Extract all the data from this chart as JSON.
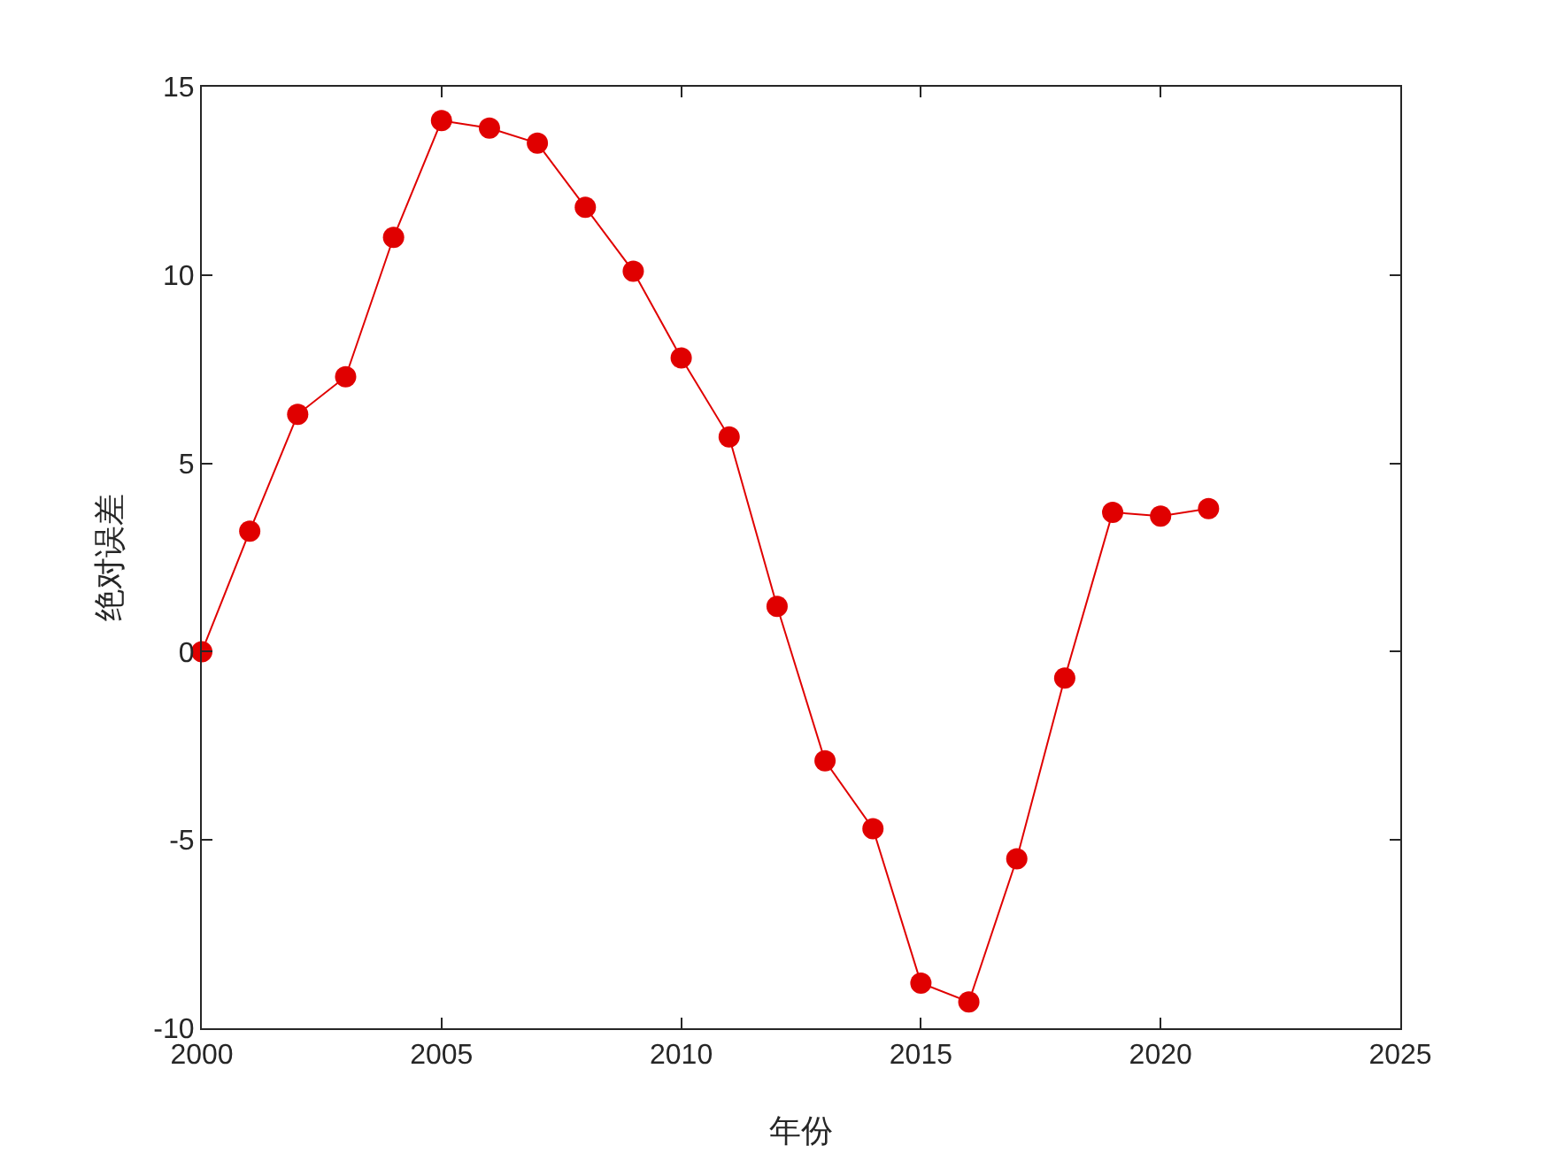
{
  "chart_data": {
    "type": "line",
    "xlabel": "年份",
    "ylabel": "绝对误差",
    "x": [
      2000,
      2001,
      2002,
      2003,
      2004,
      2005,
      2006,
      2007,
      2008,
      2009,
      2010,
      2011,
      2012,
      2013,
      2014,
      2015,
      2016,
      2017,
      2018,
      2019,
      2020,
      2021
    ],
    "series": [
      {
        "color": "#e00000",
        "values": [
          0,
          3.2,
          6.3,
          7.3,
          11.0,
          14.1,
          13.9,
          13.5,
          11.8,
          10.1,
          7.8,
          5.7,
          1.2,
          -2.9,
          -4.7,
          -8.8,
          -9.3,
          -5.5,
          -0.7,
          3.7,
          3.6,
          3.8
        ]
      }
    ],
    "xlim": [
      2000,
      2025
    ],
    "xticks": [
      2000,
      2005,
      2010,
      2015,
      2020,
      2025
    ],
    "ylim": [
      -10,
      15
    ],
    "yticks": [
      -10,
      -5,
      0,
      5,
      10,
      15
    ],
    "grid": false,
    "marker": "circle",
    "line_style": "solid"
  }
}
